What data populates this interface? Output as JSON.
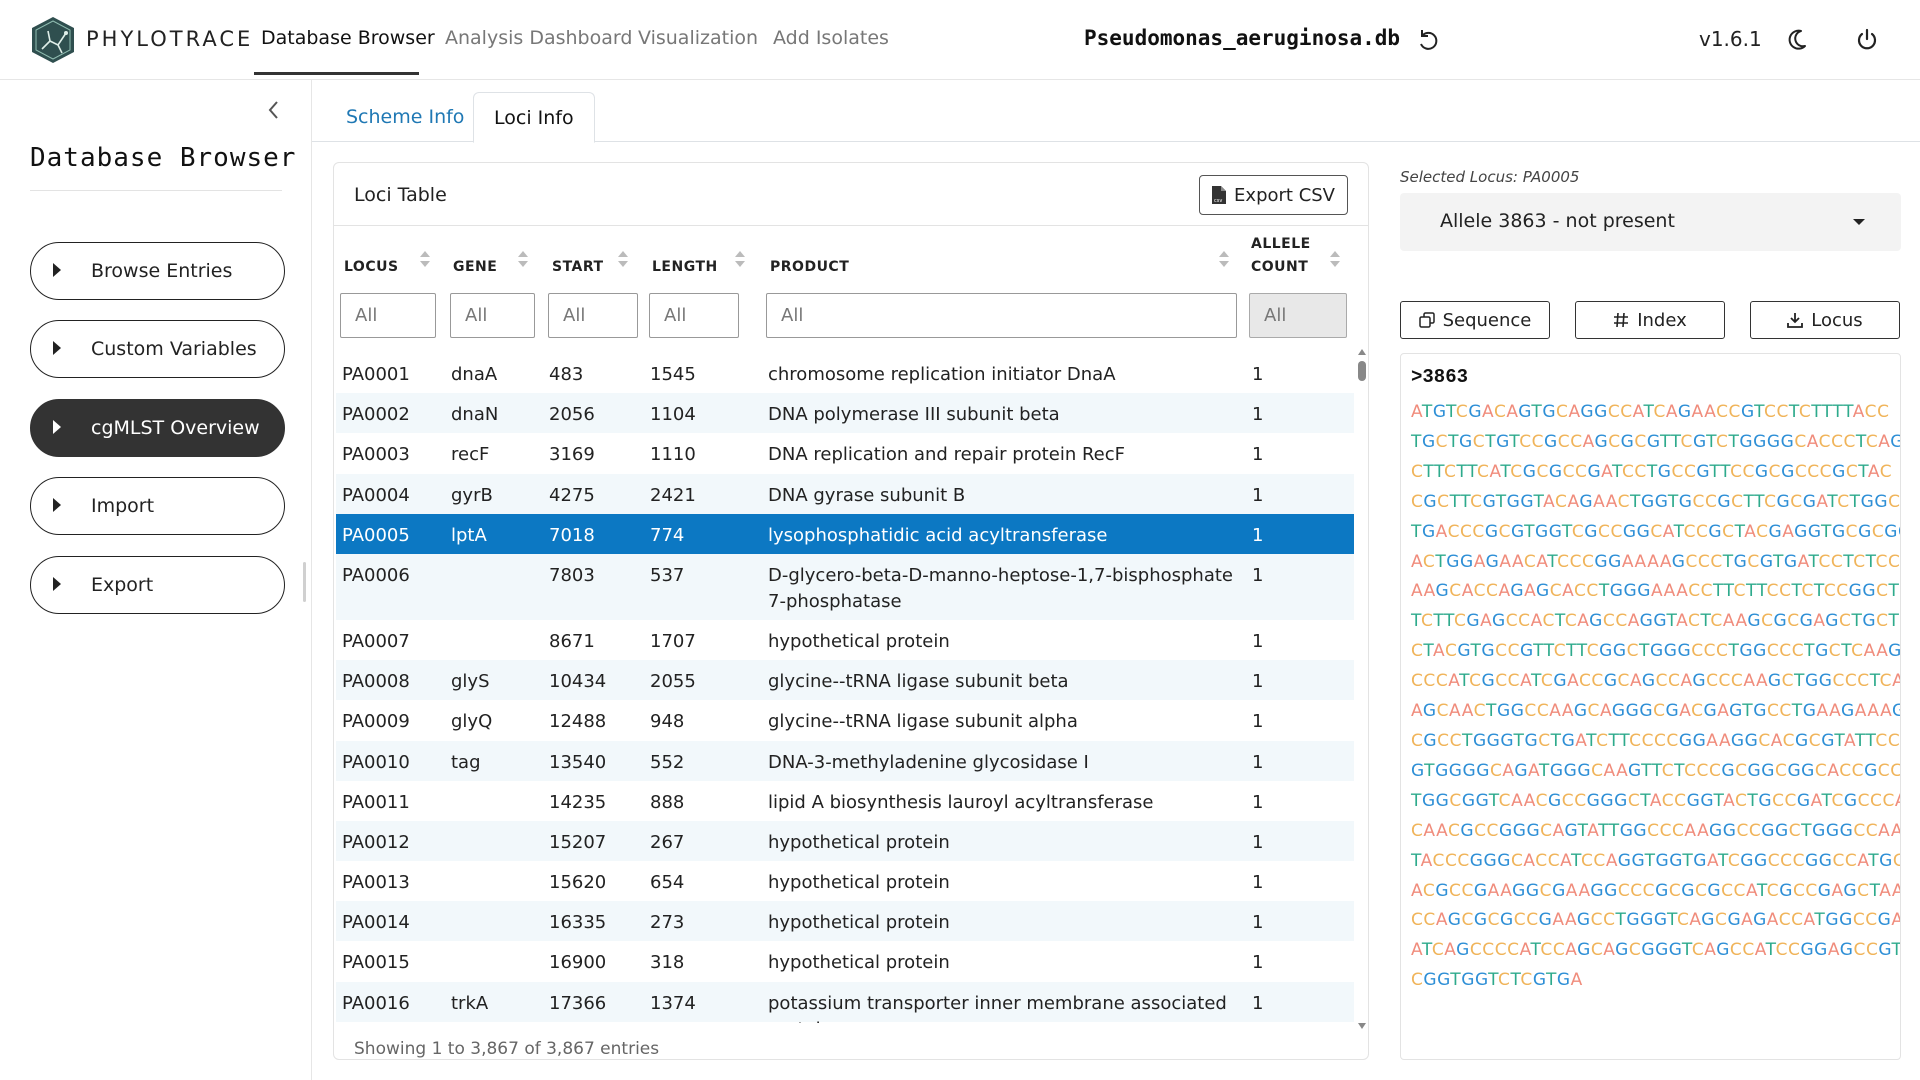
{
  "app": {
    "brand": "PHYLOTRACE",
    "db_name": "Pseudomonas_aeruginosa.db",
    "version": "v1.6.1"
  },
  "nav": {
    "items": [
      {
        "label": "Database Browser",
        "active": true
      },
      {
        "label": "Analysis Dashboard",
        "active": false
      },
      {
        "label": "Visualization",
        "active": false
      },
      {
        "label": "Add Isolates",
        "active": false
      }
    ]
  },
  "sidebar": {
    "title": "Database Browser",
    "items": [
      {
        "label": "Browse Entries",
        "active": false
      },
      {
        "label": "Custom Variables",
        "active": false
      },
      {
        "label": "cgMLST Overview",
        "active": true
      },
      {
        "label": "Import",
        "active": false
      },
      {
        "label": "Export",
        "active": false
      }
    ]
  },
  "tabs": [
    {
      "label": "Scheme Info",
      "active": false
    },
    {
      "label": "Loci Info",
      "active": true
    }
  ],
  "loci_table": {
    "title": "Loci Table",
    "export_label": "Export CSV",
    "columns": [
      {
        "key": "locus",
        "label": "LOCUS"
      },
      {
        "key": "gene",
        "label": "GENE"
      },
      {
        "key": "start",
        "label": "START"
      },
      {
        "key": "length",
        "label": "LENGTH"
      },
      {
        "key": "product",
        "label": "PRODUCT"
      },
      {
        "key": "allele_count",
        "label": "ALLELE COUNT"
      }
    ],
    "filter_placeholder": "All",
    "rows": [
      {
        "locus": "PA0001",
        "gene": "dnaA",
        "start": "483",
        "length": "1545",
        "product": "chromosome replication initiator DnaA",
        "allele_count": "1"
      },
      {
        "locus": "PA0002",
        "gene": "dnaN",
        "start": "2056",
        "length": "1104",
        "product": "DNA polymerase III subunit beta",
        "allele_count": "1"
      },
      {
        "locus": "PA0003",
        "gene": "recF",
        "start": "3169",
        "length": "1110",
        "product": "DNA replication and repair protein RecF",
        "allele_count": "1"
      },
      {
        "locus": "PA0004",
        "gene": "gyrB",
        "start": "4275",
        "length": "2421",
        "product": "DNA gyrase subunit B",
        "allele_count": "1"
      },
      {
        "locus": "PA0005",
        "gene": "lptA",
        "start": "7018",
        "length": "774",
        "product": "lysophosphatidic acid acyltransferase",
        "allele_count": "1",
        "selected": true
      },
      {
        "locus": "PA0006",
        "gene": "",
        "start": "7803",
        "length": "537",
        "product": "D-glycero-beta-D-manno-heptose-1,7-bisphosphate 7-phosphatase",
        "allele_count": "1"
      },
      {
        "locus": "PA0007",
        "gene": "",
        "start": "8671",
        "length": "1707",
        "product": "hypothetical protein",
        "allele_count": "1"
      },
      {
        "locus": "PA0008",
        "gene": "glyS",
        "start": "10434",
        "length": "2055",
        "product": "glycine--tRNA ligase subunit beta",
        "allele_count": "1"
      },
      {
        "locus": "PA0009",
        "gene": "glyQ",
        "start": "12488",
        "length": "948",
        "product": "glycine--tRNA ligase subunit alpha",
        "allele_count": "1"
      },
      {
        "locus": "PA0010",
        "gene": "tag",
        "start": "13540",
        "length": "552",
        "product": "DNA-3-methyladenine glycosidase I",
        "allele_count": "1"
      },
      {
        "locus": "PA0011",
        "gene": "",
        "start": "14235",
        "length": "888",
        "product": "lipid A biosynthesis lauroyl acyltransferase",
        "allele_count": "1"
      },
      {
        "locus": "PA0012",
        "gene": "",
        "start": "15207",
        "length": "267",
        "product": "hypothetical protein",
        "allele_count": "1"
      },
      {
        "locus": "PA0013",
        "gene": "",
        "start": "15620",
        "length": "654",
        "product": "hypothetical protein",
        "allele_count": "1"
      },
      {
        "locus": "PA0014",
        "gene": "",
        "start": "16335",
        "length": "273",
        "product": "hypothetical protein",
        "allele_count": "1"
      },
      {
        "locus": "PA0015",
        "gene": "",
        "start": "16900",
        "length": "318",
        "product": "hypothetical protein",
        "allele_count": "1"
      },
      {
        "locus": "PA0016",
        "gene": "trkA",
        "start": "17366",
        "length": "1374",
        "product": "potassium transporter inner membrane associated protein",
        "allele_count": "1"
      }
    ],
    "info": "Showing 1 to 3,867 of 3,867 entries"
  },
  "right_panel": {
    "selected_locus_label": "Selected Locus: PA0005",
    "allele_select_value": "Allele 3863 - not present",
    "buttons": {
      "sequence": "Sequence",
      "index": "Index",
      "locus": "Locus"
    },
    "fasta_header": ">3863",
    "sequence_lines": [
      "ATGTCGACAGTGCAGGCCATCAGAACCGTCCTCTTTTACC",
      "TGCTGCTGTCCGCCAGCGCGTTCGTCTGGGGCACCCTCAG",
      "CTTCTTCATCGCGCCGATCCTGCCGTTCCGCGCCCGCTAC",
      "CGCTTCGTGGTACAGAACTGGTGCCGCTTCGCGATCTGGC",
      "TGACCCGCGTGGTCGCCGGCATCCGCTACGAGGTGCGCGG",
      "ACTGGAGAACATCCCGGAAAAGCCCTGCGTGATCCTCTCC",
      "AAGCACCAGAGCACCTGGGAAACCTTCTTCCTCTCCGGCT",
      "TCTTCGAGCCACTCAGCCAGGTACTCAAGCGCGAGCTGCT",
      "CTACGTGCCGTTCTTCGGCTGGGCCCTGGCCCTGCTCAAG",
      "CCCATCGCCATCGACCGCAGCCAGCCCAAGCTGGCCCTCA",
      "AGCAACTGGCCAAGCAGGGCGACGAGTGCCTGAAGAAAGG",
      "CGCCTGGGTGCTGATCTTCCCCGGAAGGCACGCGTATTCCG",
      "GTGGGGCAGATGGGCAAGTTCTCCCGCGGCGGCACCGCCC",
      "TGGCGGTCAACGCCGGGCTACCGGTACTGCCGATCGCCCA",
      "CAACGCCGGGCAGTATTGGCCCAAGGCCGGCTGGGCCAAG",
      "TACCCGGGCACCATCCAGGTGGTGATCGGCCCGGCCATGC",
      "ACGCCGAAGGCGAAGGCCCGCGCGCCATCGCCGAGCTAAA",
      "CCAGCGCGCCGAAGCCTGGGTCAGCGAGACCATGGCCGAG",
      "ATCAGCCCCATCCAGCAGCGGGTCAGCCATCCGGAGCCGT",
      "CGGTGGTCTCGTGA"
    ],
    "base_colors": {
      "A": "#f08c7c",
      "T": "#2eaa8c",
      "G": "#2e8fd6",
      "C": "#f0b45a"
    }
  }
}
